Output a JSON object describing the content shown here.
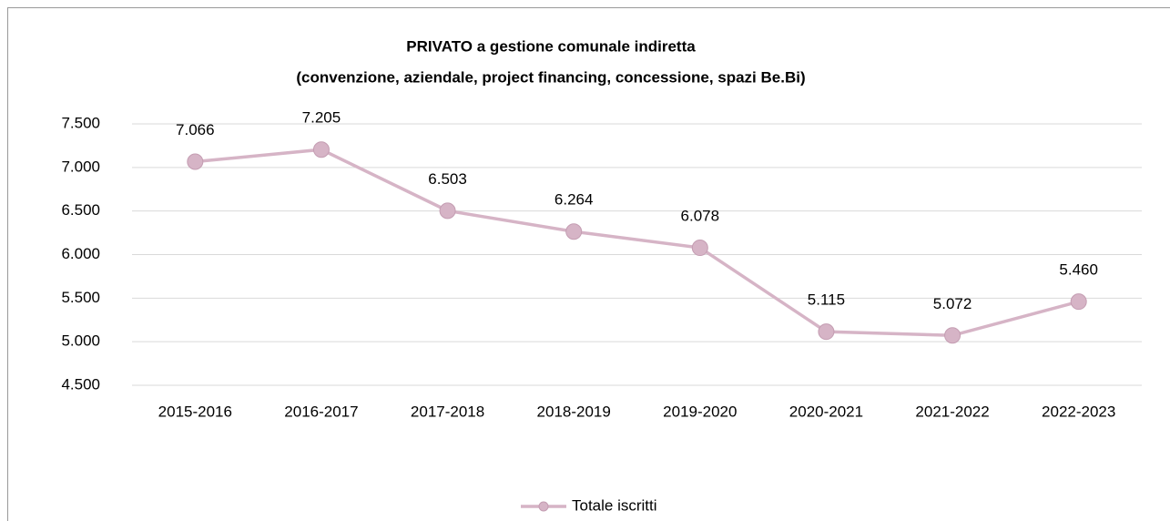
{
  "chart_data": {
    "type": "line",
    "title": "PRIVATO a gestione comunale indiretta",
    "subtitle": "(convenzione, aziendale, project financing, concessione, spazi Be.Bi)",
    "categories": [
      "2015-2016",
      "2016-2017",
      "2017-2018",
      "2018-2019",
      "2019-2020",
      "2020-2021",
      "2021-2022",
      "2022-2023"
    ],
    "series": [
      {
        "name": "Totale iscritti",
        "color": "#d6b4c6",
        "values": [
          7066,
          7205,
          6503,
          6264,
          6078,
          5115,
          5072,
          5460
        ],
        "value_labels": [
          "7.066",
          "7.205",
          "6.503",
          "6.264",
          "6.078",
          "5.115",
          "5.072",
          "5.460"
        ]
      }
    ],
    "ylim": [
      4500,
      7500
    ],
    "yticks": [
      {
        "value": 4500,
        "label": "4.500"
      },
      {
        "value": 5000,
        "label": "5.000"
      },
      {
        "value": 5500,
        "label": "5.500"
      },
      {
        "value": 6000,
        "label": "6.000"
      },
      {
        "value": 6500,
        "label": "6.500"
      },
      {
        "value": 7000,
        "label": "7.000"
      },
      {
        "value": 7500,
        "label": "7.500"
      }
    ],
    "grid": true,
    "legend": "bottom"
  }
}
